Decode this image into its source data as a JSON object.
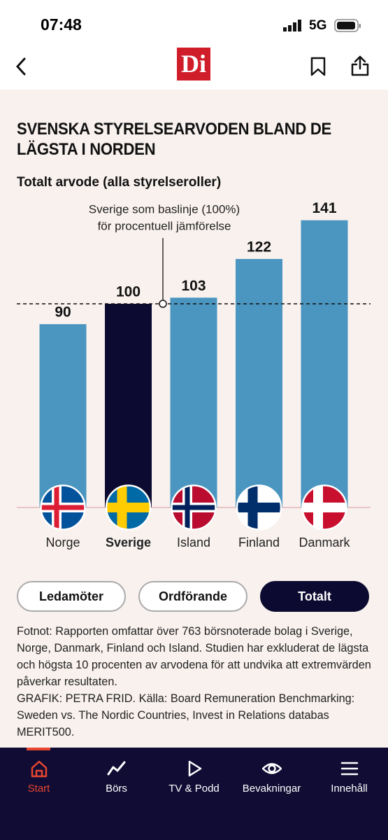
{
  "status": {
    "time": "07:48",
    "network": "5G"
  },
  "header": {
    "logo": "Di"
  },
  "chart_data": {
    "type": "bar",
    "title": "SVENSKA STYRELSEARVODEN BLAND DE LÄGSTA I NORDEN",
    "subtitle": "Totalt arvode (alla styrelseroller)",
    "categories": [
      "Norge",
      "Sverige",
      "Island",
      "Finland",
      "Danmark"
    ],
    "values": [
      90,
      100,
      103,
      122,
      141
    ],
    "colors": [
      "#4a96c0",
      "#0c0a30",
      "#4a96c0",
      "#4a96c0",
      "#4a96c0"
    ],
    "highlight": "Sverige",
    "ylim": [
      0,
      150
    ],
    "reference_line": 100,
    "annotation": [
      "Sverige som baslinje (100%)",
      "för procentuell jämförelse"
    ]
  },
  "tabs": [
    "Ledamöter",
    "Ordförande",
    "Totalt"
  ],
  "active_tab": "Totalt",
  "footnote": "Fotnot: Rapporten omfattar över 763 börsnoterade bolag i Sverige, Norge, Danmark, Finland och Island. Studien har exkluderat de lägsta och högsta 10 procenten av arvodena för att undvika att extremvärden påverkar resultaten.",
  "credit": "GRAFIK: PETRA FRID. Källa: Board Remuneration Benchmarking: Sweden vs. The Nordic Countries, Invest in Relations databas MERIT500.",
  "bottom_nav": [
    "Start",
    "Börs",
    "TV & Podd",
    "Bevakningar",
    "Innehåll"
  ]
}
